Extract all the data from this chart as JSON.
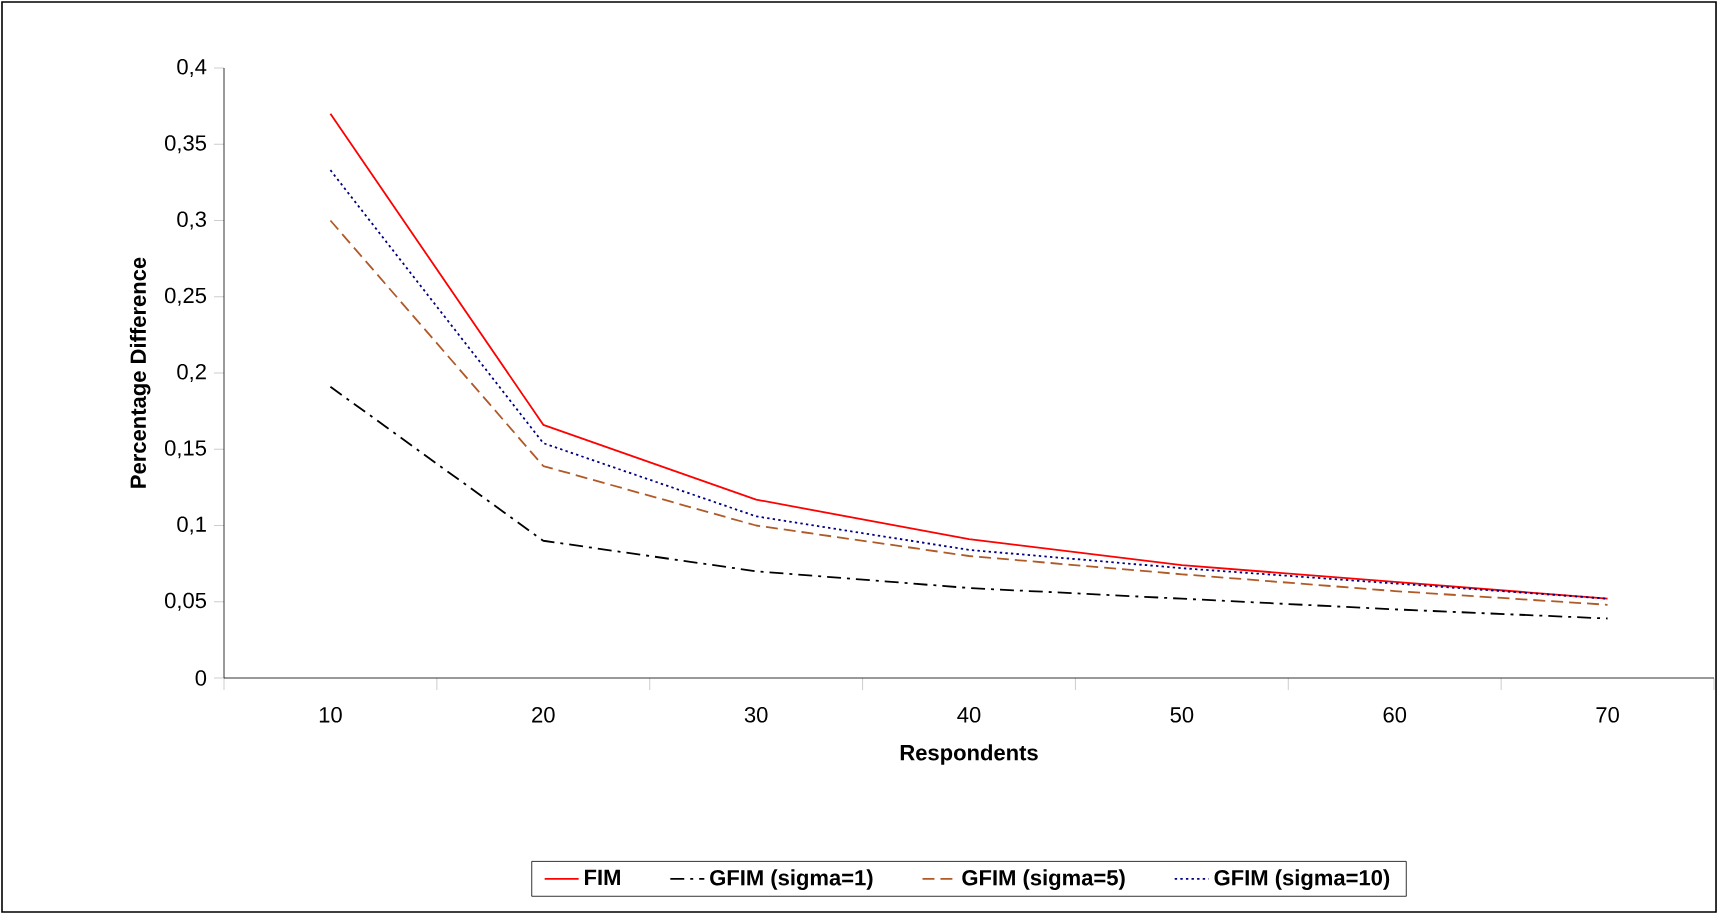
{
  "chart_data": {
    "type": "line",
    "xlabel": "Respondents",
    "ylabel": "Percentage Difference",
    "categories": [
      "10",
      "20",
      "30",
      "40",
      "50",
      "60",
      "70"
    ],
    "series": [
      {
        "name": "FIM",
        "color": "#ff0000",
        "line_style": "solid",
        "values": [
          0.37,
          0.166,
          0.117,
          0.091,
          0.074,
          0.063,
          0.052
        ]
      },
      {
        "name": "GFIM (sigma=1)",
        "color": "#000000",
        "line_style": "dashdot",
        "values": [
          0.191,
          0.09,
          0.07,
          0.059,
          0.052,
          0.045,
          0.039
        ]
      },
      {
        "name": "GFIM (sigma=5)",
        "color": "#b05a28",
        "line_style": "dashed",
        "values": [
          0.3,
          0.139,
          0.1,
          0.08,
          0.068,
          0.057,
          0.048
        ]
      },
      {
        "name": "GFIM (sigma=10)",
        "color": "#000080",
        "line_style": "dotted",
        "values": [
          0.333,
          0.154,
          0.106,
          0.084,
          0.072,
          0.062,
          0.052
        ]
      }
    ],
    "ylim": [
      0,
      0.4
    ],
    "yticks": [
      {
        "value": 0,
        "label": "0"
      },
      {
        "value": 0.05,
        "label": "0,05"
      },
      {
        "value": 0.1,
        "label": "0,1"
      },
      {
        "value": 0.15,
        "label": "0,15"
      },
      {
        "value": 0.2,
        "label": "0,2"
      },
      {
        "value": 0.25,
        "label": "0,25"
      },
      {
        "value": 0.3,
        "label": "0,3"
      },
      {
        "value": 0.35,
        "label": "0,35"
      },
      {
        "value": 0.4,
        "label": "0,4"
      }
    ],
    "grid": false,
    "legend": "bottom",
    "marker": "none"
  }
}
